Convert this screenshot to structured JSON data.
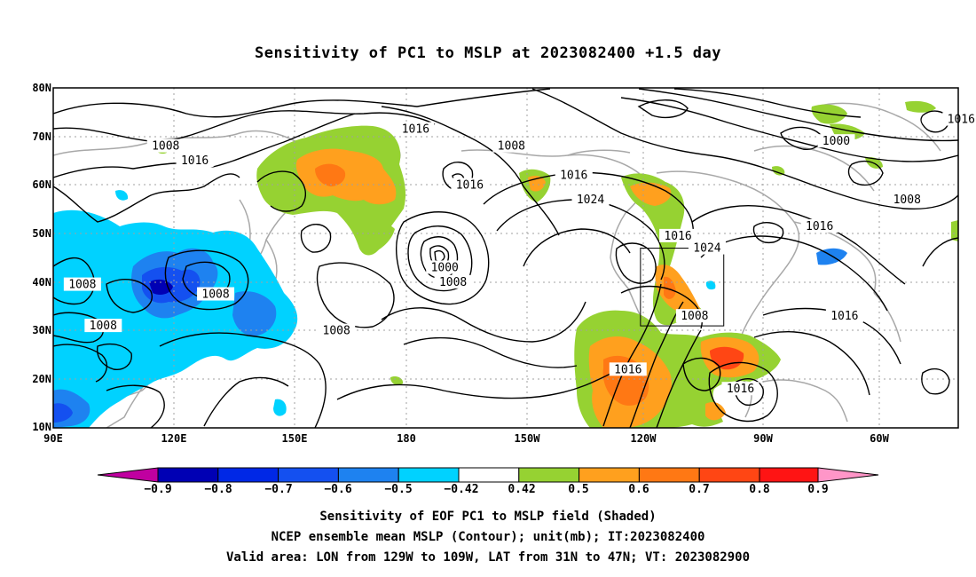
{
  "title": "Sensitivity of PC1 to MSLP at 2023082400 +1.5 day",
  "lat_labels": [
    "80N",
    "70N",
    "60N",
    "50N",
    "40N",
    "30N",
    "20N",
    "10N"
  ],
  "lon_labels": [
    "90E",
    "120E",
    "150E",
    "180",
    "150W",
    "120W",
    "90W",
    "60W"
  ],
  "contour_labels": [
    {
      "text": "1016",
      "lon": 177,
      "lat": 71.5
    },
    {
      "text": "1008",
      "lon": 117,
      "lat": 68
    },
    {
      "text": "1016",
      "lon": 124,
      "lat": 65
    },
    {
      "text": "1008",
      "lon": -160,
      "lat": 68
    },
    {
      "text": "1016",
      "lon": -170,
      "lat": 60
    },
    {
      "text": "1016",
      "lon": -145,
      "lat": 62
    },
    {
      "text": "1024",
      "lon": -141,
      "lat": 57
    },
    {
      "text": "1000",
      "lon": -82,
      "lat": 69
    },
    {
      "text": "1016",
      "lon": -52,
      "lat": 73.5
    },
    {
      "text": "1008",
      "lon": -65,
      "lat": 57
    },
    {
      "text": "1016",
      "lon": -86,
      "lat": 51.5
    },
    {
      "text": "1016",
      "lon": -120,
      "lat": 49.5
    },
    {
      "text": "1024",
      "lon": -113,
      "lat": 47
    },
    {
      "text": "1000",
      "lon": -176,
      "lat": 43
    },
    {
      "text": "1008",
      "lon": -174,
      "lat": 40
    },
    {
      "text": "1008",
      "lon": 97,
      "lat": 39.5
    },
    {
      "text": "1008",
      "lon": 129,
      "lat": 37.5
    },
    {
      "text": "1008",
      "lon": 102,
      "lat": 31
    },
    {
      "text": "1008",
      "lon": 158,
      "lat": 30
    },
    {
      "text": "1008",
      "lon": -116,
      "lat": 33
    },
    {
      "text": "1016",
      "lon": -80,
      "lat": 33
    },
    {
      "text": "1016",
      "lon": -132,
      "lat": 22
    },
    {
      "text": "1016",
      "lon": -105,
      "lat": 18
    }
  ],
  "valid_box": {
    "lon_min": -129,
    "lon_max": -109,
    "lat_min": 31,
    "lat_max": 47
  },
  "colorbar": {
    "labels": [
      "−0.9",
      "−0.8",
      "−0.7",
      "−0.6",
      "−0.5",
      "−0.42",
      "0.42",
      "0.5",
      "0.6",
      "0.7",
      "0.8",
      "0.9"
    ],
    "colors": {
      "below_min": "#c000a0",
      "neg_09": "#0000b4",
      "neg_08": "#0028e6",
      "neg_07": "#1450f0",
      "neg_06": "#1e82f0",
      "neg_05": "#00b4f0",
      "neg_042": "#00d2ff",
      "mid": "#ffffff",
      "pos_042": "#96d232",
      "pos_05": "#ffa01e",
      "pos_06": "#ff7814",
      "pos_07": "#ff4614",
      "pos_08": "#ff1414",
      "above_max": "#ff96c8"
    }
  },
  "footer": [
    "Sensitivity of EOF PC1 to MSLP field (Shaded)",
    "NCEP ensemble mean MSLP (Contour); unit(mb); IT:2023082400",
    "Valid area: LON from 129W to 109W, LAT from 31N to 47N; VT: 2023082900"
  ]
}
